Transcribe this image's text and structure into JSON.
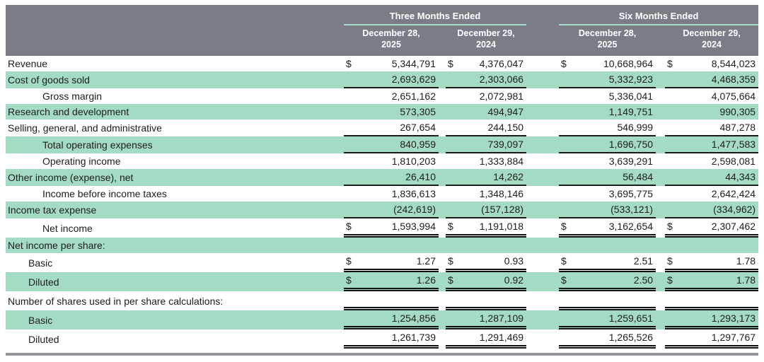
{
  "table": {
    "currency_symbol": "$",
    "header": {
      "groups": [
        {
          "title": "Three Months Ended",
          "columns": [
            {
              "line1": "December 28,",
              "line2": "2025"
            },
            {
              "line1": "December 29,",
              "line2": "2024"
            }
          ]
        },
        {
          "title": "Six Months Ended",
          "columns": [
            {
              "line1": "December 28,",
              "line2": "2025"
            },
            {
              "line1": "December 29,",
              "line2": "2024"
            }
          ]
        }
      ]
    },
    "rows": [
      {
        "label": "Revenue",
        "indent": 0,
        "shade": false,
        "dollar": true,
        "border": "none",
        "values": [
          "5,344,791",
          "4,376,047",
          "10,668,964",
          "8,544,023"
        ]
      },
      {
        "label": "Cost of goods sold",
        "indent": 0,
        "shade": true,
        "dollar": false,
        "border": "single",
        "values": [
          "2,693,629",
          "2,303,066",
          "5,332,923",
          "4,468,359"
        ]
      },
      {
        "label": "Gross margin",
        "indent": 2,
        "shade": false,
        "dollar": false,
        "border": "none",
        "values": [
          "2,651,162",
          "2,072,981",
          "5,336,041",
          "4,075,664"
        ]
      },
      {
        "label": "Research and development",
        "indent": 0,
        "shade": true,
        "dollar": false,
        "border": "none",
        "values": [
          "573,305",
          "494,947",
          "1,149,751",
          "990,305"
        ]
      },
      {
        "label": "Selling, general, and administrative",
        "indent": 0,
        "shade": false,
        "dollar": false,
        "border": "single",
        "values": [
          "267,654",
          "244,150",
          "546,999",
          "487,278"
        ]
      },
      {
        "label": "Total operating expenses",
        "indent": 2,
        "shade": true,
        "dollar": false,
        "border": "single",
        "values": [
          "840,959",
          "739,097",
          "1,696,750",
          "1,477,583"
        ]
      },
      {
        "label": "Operating income",
        "indent": 2,
        "shade": false,
        "dollar": false,
        "border": "none",
        "values": [
          "1,810,203",
          "1,333,884",
          "3,639,291",
          "2,598,081"
        ]
      },
      {
        "label": "Other income (expense), net",
        "indent": 0,
        "shade": true,
        "dollar": false,
        "border": "single",
        "values": [
          "26,410",
          "14,262",
          "56,484",
          "44,343"
        ]
      },
      {
        "label": "Income before income taxes",
        "indent": 2,
        "shade": false,
        "dollar": false,
        "border": "none",
        "values": [
          "1,836,613",
          "1,348,146",
          "3,695,775",
          "2,642,424"
        ]
      },
      {
        "label": "Income tax expense",
        "indent": 0,
        "shade": true,
        "dollar": false,
        "border": "single",
        "values": [
          "(242,619)",
          "(157,128)",
          "(533,121)",
          "(334,962)"
        ]
      },
      {
        "label": "Net income",
        "indent": 2,
        "shade": false,
        "dollar": true,
        "border": "double",
        "values": [
          "1,593,994",
          "1,191,018",
          "3,162,654",
          "2,307,462"
        ]
      },
      {
        "label": "Net income per share:",
        "indent": 0,
        "shade": true,
        "dollar": false,
        "border": "none",
        "values": [
          "",
          "",
          "",
          ""
        ]
      },
      {
        "label": "Basic",
        "indent": 1,
        "shade": false,
        "dollar": true,
        "border": "double",
        "values": [
          "1.27",
          "0.93",
          "2.51",
          "1.78"
        ]
      },
      {
        "label": "Diluted",
        "indent": 1,
        "shade": true,
        "dollar": true,
        "border": "double",
        "values": [
          "1.26",
          "0.92",
          "2.50",
          "1.78"
        ]
      },
      {
        "label": "Number of shares used in per share calculations:",
        "indent": 0,
        "shade": false,
        "dollar": false,
        "border": "double",
        "values": [
          "",
          "",
          "",
          ""
        ]
      },
      {
        "label": "Basic",
        "indent": 1,
        "shade": true,
        "dollar": false,
        "border": "double",
        "values": [
          "1,254,856",
          "1,287,109",
          "1,259,651",
          "1,293,173"
        ]
      },
      {
        "label": "Diluted",
        "indent": 1,
        "shade": false,
        "dollar": false,
        "border": "double",
        "values": [
          "1,261,739",
          "1,291,469",
          "1,265,526",
          "1,297,767"
        ]
      }
    ],
    "colors": {
      "header_bg": "#7a7d85",
      "shade_green": "#a3dbc3",
      "rule_line": "#1a1a1a",
      "bottom_bar": "#94969d",
      "header_text": "#ffffff",
      "body_text": "#1d1d1f"
    }
  }
}
